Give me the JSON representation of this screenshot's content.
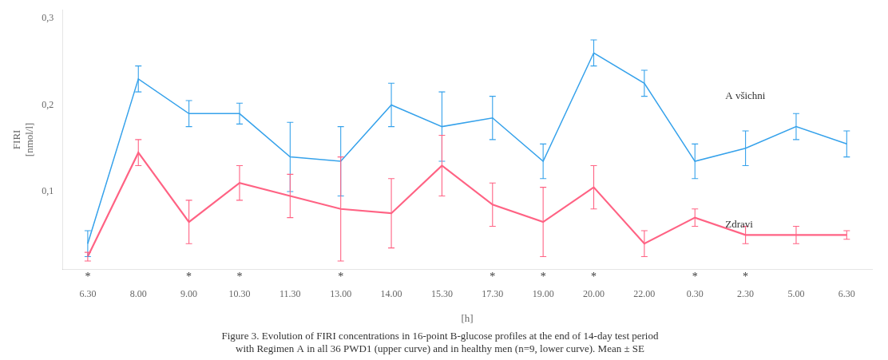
{
  "chart_data": {
    "type": "line",
    "caption": [
      "Figure 3. Evolution of FIRI concentrations in 16-point B-glucose profiles at the end of 14-day test period",
      "with Regimen A in all 36 PWD1 (upper curve) and in healthy men (n=9, lower curve). Mean ± SE"
    ],
    "xlabel": "[h]",
    "ylabel": [
      "FIRI",
      "[nmol/l]"
    ],
    "categories": [
      "6.30",
      "8.00",
      "9.00",
      "10.30",
      "11.30",
      "13.00",
      "14.00",
      "15.30",
      "17.30",
      "19.00",
      "20.00",
      "22.00",
      "0.30",
      "2.30",
      "5.00",
      "6.30"
    ],
    "series": [
      {
        "values": [
          0.04,
          0.23,
          0.19,
          0.19,
          0.14,
          0.135,
          0.2,
          0.175,
          0.185,
          0.135,
          0.26,
          0.225,
          0.135,
          0.15,
          0.175,
          0.155
        ],
        "errors": [
          0.015,
          0.015,
          0.015,
          0.012,
          0.04,
          0.04,
          0.025,
          0.04,
          0.025,
          0.02,
          0.015,
          0.015,
          0.02,
          0.02,
          0.015,
          0.015
        ]
      },
      {
        "values": [
          0.025,
          0.145,
          0.065,
          0.11,
          0.095,
          0.08,
          0.075,
          0.13,
          0.085,
          0.065,
          0.105,
          0.04,
          0.07,
          0.05,
          0.05,
          0.05
        ],
        "errors": [
          0.005,
          0.015,
          0.025,
          0.02,
          0.025,
          0.06,
          0.04,
          0.035,
          0.025,
          0.04,
          0.025,
          0.015,
          0.01,
          0.01,
          0.01,
          0.005
        ]
      }
    ],
    "significance_labels": [
      "*",
      null,
      "*",
      "*",
      null,
      "*",
      null,
      null,
      "*",
      "*",
      "*",
      null,
      "*",
      "*",
      null,
      null
    ],
    "annotations": [
      {
        "text": "A všichni",
        "x": 12.6,
        "y": 0.21
      },
      {
        "text": "Zdravi",
        "x": 12.6,
        "y": 0.062
      }
    ],
    "ylim": [
      0.01,
      0.31
    ],
    "yticks": [
      {
        "value": 0.1,
        "label": "0,1"
      },
      {
        "value": 0.2,
        "label": "0,2"
      },
      {
        "value": 0.3,
        "label": "0,3"
      }
    ],
    "marker": "none",
    "grid": false
  }
}
